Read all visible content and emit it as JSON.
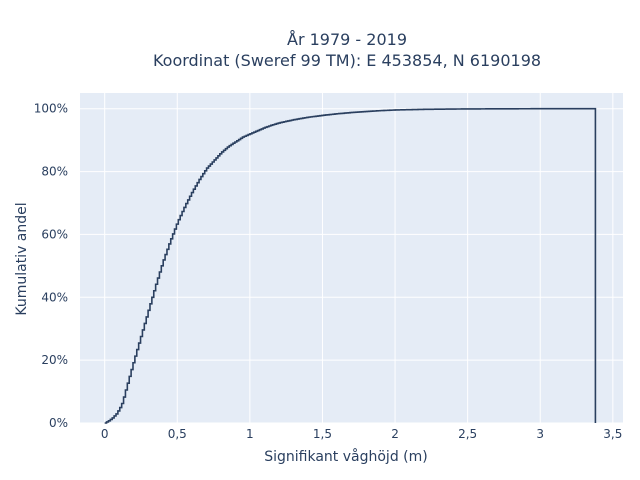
{
  "chart_data": {
    "type": "line",
    "line_shape": "step",
    "title_line1": "År 1979 - 2019",
    "title_line2": "Koordinat (Sweref 99 TM): E 453854, N 6190198",
    "xlabel": "Signifikant våghöjd (m)",
    "ylabel": "Kumulativ andel",
    "xlim": [
      -0.17,
      3.57
    ],
    "ylim": [
      0,
      1.05
    ],
    "x_ticks": [
      0,
      0.5,
      1,
      1.5,
      2,
      2.5,
      3,
      3.5
    ],
    "x_tick_labels": [
      "0",
      "0,5",
      "1",
      "1,5",
      "2",
      "2,5",
      "3",
      "3,5"
    ],
    "y_ticks": [
      0,
      0.2,
      0.4,
      0.6,
      0.8,
      1.0
    ],
    "y_tick_labels": [
      "0%",
      "20%",
      "40%",
      "60%",
      "80%",
      "100%"
    ],
    "grid": true,
    "legend": "none",
    "colors": {
      "plot_bg": "#e5ecf6",
      "grid": "#ffffff",
      "line": "#2a3f5f",
      "text": "#2a3f5f"
    },
    "series": [
      {
        "x": [
          0.0,
          0.02,
          0.05,
          0.08,
          0.1,
          0.12,
          0.14,
          0.17,
          0.2,
          0.25,
          0.3,
          0.35,
          0.4,
          0.45,
          0.5,
          0.55,
          0.6,
          0.65,
          0.7,
          0.75,
          0.8,
          0.85,
          0.9,
          0.95,
          1.0,
          1.05,
          1.1,
          1.15,
          1.2,
          1.3,
          1.4,
          1.5,
          1.6,
          1.7,
          1.8,
          1.9,
          2.0,
          2.2,
          2.4,
          2.6,
          2.8,
          3.0,
          3.2,
          3.38,
          3.38
        ],
        "y": [
          0.0,
          0.005,
          0.015,
          0.03,
          0.045,
          0.065,
          0.1,
          0.15,
          0.2,
          0.28,
          0.36,
          0.44,
          0.515,
          0.58,
          0.64,
          0.69,
          0.735,
          0.775,
          0.81,
          0.835,
          0.86,
          0.88,
          0.895,
          0.91,
          0.92,
          0.93,
          0.94,
          0.948,
          0.955,
          0.965,
          0.973,
          0.979,
          0.984,
          0.988,
          0.991,
          0.994,
          0.996,
          0.998,
          0.999,
          0.9995,
          0.9998,
          1.0,
          1.0,
          1.0,
          0.0
        ]
      }
    ]
  }
}
